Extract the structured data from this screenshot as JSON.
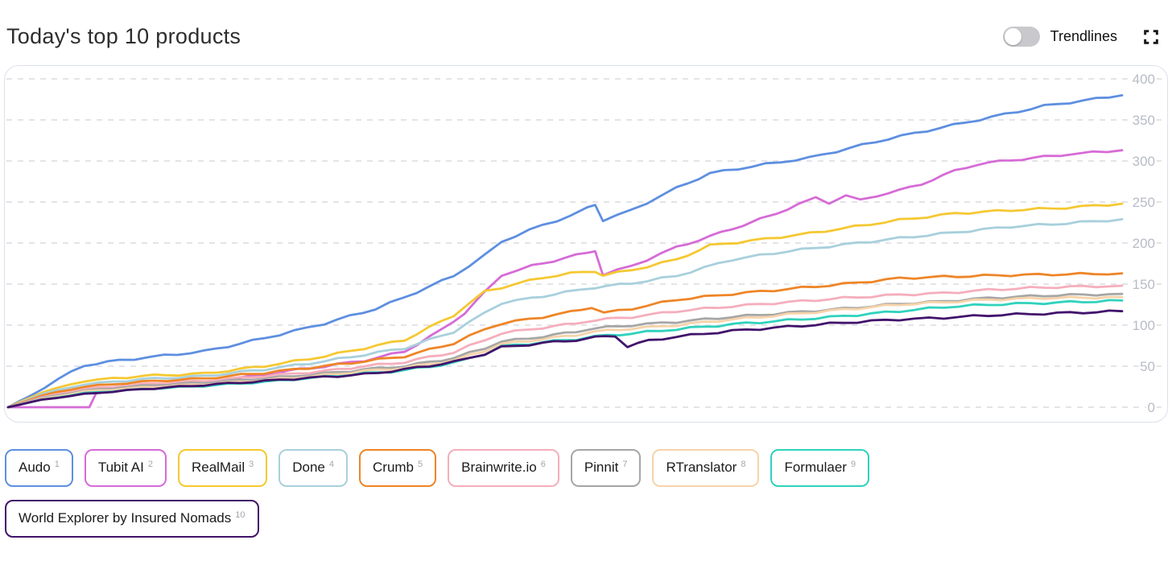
{
  "header": {
    "title": "Today's top 10 products",
    "trendlines_label": "Trendlines",
    "trendlines_state": "off"
  },
  "colors": {
    "grid": "#e4e4e8",
    "card_border": "#dce1ea",
    "tick_label": "#b8bcc5",
    "toggle_track": "#c9c9cd",
    "title_text": "#2d2d2d"
  },
  "chart_data": {
    "type": "line",
    "title": "Today's top 10 products",
    "xlabel": "",
    "ylabel": "",
    "x_range": [
      0,
      1
    ],
    "ylim": [
      0,
      400
    ],
    "yticks": [
      0,
      50,
      100,
      150,
      200,
      250,
      300,
      350,
      400
    ],
    "y_axis_side": "right",
    "grid": "dashed-horizontal",
    "legend_position": "bottom",
    "series": [
      {
        "name": "Audo",
        "rank": 1,
        "color": "#5e8fe0",
        "final_value": 380,
        "points": [
          [
            0,
            0
          ],
          [
            0.02,
            14
          ],
          [
            0.045,
            34
          ],
          [
            0.068,
            51
          ],
          [
            0.1,
            57
          ],
          [
            0.14,
            63
          ],
          [
            0.176,
            68
          ],
          [
            0.23,
            84
          ],
          [
            0.284,
            102
          ],
          [
            0.33,
            120
          ],
          [
            0.356,
            134
          ],
          [
            0.4,
            160
          ],
          [
            0.428,
            185
          ],
          [
            0.443,
            202
          ],
          [
            0.48,
            222
          ],
          [
            0.505,
            233
          ],
          [
            0.52,
            243
          ],
          [
            0.527,
            247
          ],
          [
            0.534,
            228
          ],
          [
            0.56,
            240
          ],
          [
            0.6,
            267
          ],
          [
            0.63,
            285
          ],
          [
            0.68,
            296
          ],
          [
            0.72,
            304
          ],
          [
            0.79,
            327
          ],
          [
            0.86,
            347
          ],
          [
            0.93,
            367
          ],
          [
            1,
            380
          ]
        ]
      },
      {
        "name": "Tubit AI",
        "rank": 2,
        "color": "#d66bd6",
        "final_value": 313,
        "points": [
          [
            0,
            0
          ],
          [
            0.073,
            0
          ],
          [
            0.08,
            20
          ],
          [
            0.12,
            24
          ],
          [
            0.176,
            30
          ],
          [
            0.22,
            38
          ],
          [
            0.25,
            44
          ],
          [
            0.284,
            50
          ],
          [
            0.32,
            57
          ],
          [
            0.356,
            68
          ],
          [
            0.39,
            95
          ],
          [
            0.41,
            115
          ],
          [
            0.428,
            140
          ],
          [
            0.443,
            161
          ],
          [
            0.47,
            172
          ],
          [
            0.5,
            182
          ],
          [
            0.52,
            188
          ],
          [
            0.527,
            191
          ],
          [
            0.534,
            162
          ],
          [
            0.56,
            172
          ],
          [
            0.6,
            195
          ],
          [
            0.63,
            208
          ],
          [
            0.66,
            222
          ],
          [
            0.69,
            236
          ],
          [
            0.71,
            248
          ],
          [
            0.725,
            255
          ],
          [
            0.737,
            249
          ],
          [
            0.752,
            258
          ],
          [
            0.765,
            252
          ],
          [
            0.78,
            258
          ],
          [
            0.8,
            264
          ],
          [
            0.82,
            272
          ],
          [
            0.85,
            288
          ],
          [
            0.87,
            296
          ],
          [
            0.9,
            301
          ],
          [
            0.93,
            305
          ],
          [
            0.96,
            309
          ],
          [
            1,
            313
          ]
        ]
      },
      {
        "name": "RealMail",
        "rank": 3,
        "color": "#f5c832",
        "final_value": 248,
        "points": [
          [
            0,
            0
          ],
          [
            0.03,
            18
          ],
          [
            0.068,
            32
          ],
          [
            0.12,
            38
          ],
          [
            0.176,
            41
          ],
          [
            0.23,
            50
          ],
          [
            0.284,
            62
          ],
          [
            0.32,
            72
          ],
          [
            0.356,
            82
          ],
          [
            0.4,
            112
          ],
          [
            0.428,
            141
          ],
          [
            0.443,
            146
          ],
          [
            0.48,
            158
          ],
          [
            0.505,
            163
          ],
          [
            0.527,
            166
          ],
          [
            0.534,
            161
          ],
          [
            0.56,
            167
          ],
          [
            0.6,
            180
          ],
          [
            0.63,
            197
          ],
          [
            0.68,
            205
          ],
          [
            0.72,
            212
          ],
          [
            0.76,
            220
          ],
          [
            0.8,
            228
          ],
          [
            0.85,
            236
          ],
          [
            0.9,
            240
          ],
          [
            0.95,
            243
          ],
          [
            1,
            248
          ]
        ]
      },
      {
        "name": "Done",
        "rank": 4,
        "color": "#a8d0dc",
        "final_value": 229,
        "points": [
          [
            0,
            0
          ],
          [
            0.03,
            16
          ],
          [
            0.068,
            28
          ],
          [
            0.12,
            34
          ],
          [
            0.176,
            38
          ],
          [
            0.23,
            46
          ],
          [
            0.284,
            56
          ],
          [
            0.32,
            64
          ],
          [
            0.356,
            72
          ],
          [
            0.4,
            92
          ],
          [
            0.428,
            115
          ],
          [
            0.443,
            127
          ],
          [
            0.47,
            133
          ],
          [
            0.5,
            140
          ],
          [
            0.527,
            146
          ],
          [
            0.56,
            151
          ],
          [
            0.6,
            160
          ],
          [
            0.65,
            180
          ],
          [
            0.7,
            190
          ],
          [
            0.75,
            198
          ],
          [
            0.8,
            206
          ],
          [
            0.85,
            213
          ],
          [
            0.9,
            220
          ],
          [
            0.95,
            224
          ],
          [
            1,
            229
          ]
        ]
      },
      {
        "name": "Crumb",
        "rank": 5,
        "color": "#ee8527",
        "final_value": 163,
        "points": [
          [
            0,
            0
          ],
          [
            0.03,
            14
          ],
          [
            0.068,
            25
          ],
          [
            0.12,
            31
          ],
          [
            0.176,
            35
          ],
          [
            0.23,
            42
          ],
          [
            0.284,
            50
          ],
          [
            0.32,
            56
          ],
          [
            0.356,
            62
          ],
          [
            0.4,
            78
          ],
          [
            0.428,
            95
          ],
          [
            0.443,
            102
          ],
          [
            0.48,
            110
          ],
          [
            0.505,
            116
          ],
          [
            0.524,
            122
          ],
          [
            0.535,
            115
          ],
          [
            0.56,
            120
          ],
          [
            0.6,
            131
          ],
          [
            0.65,
            138
          ],
          [
            0.7,
            144
          ],
          [
            0.75,
            150
          ],
          [
            0.8,
            157
          ],
          [
            0.84,
            159
          ],
          [
            0.9,
            161
          ],
          [
            1,
            163
          ]
        ]
      },
      {
        "name": "Brainwrite.io",
        "rank": 6,
        "color": "#f5aebc",
        "final_value": 148,
        "points": [
          [
            0,
            0
          ],
          [
            0.03,
            12
          ],
          [
            0.068,
            22
          ],
          [
            0.12,
            28
          ],
          [
            0.176,
            32
          ],
          [
            0.23,
            38
          ],
          [
            0.284,
            44
          ],
          [
            0.32,
            50
          ],
          [
            0.356,
            55
          ],
          [
            0.4,
            67
          ],
          [
            0.428,
            82
          ],
          [
            0.443,
            90
          ],
          [
            0.48,
            97
          ],
          [
            0.51,
            102
          ],
          [
            0.527,
            106
          ],
          [
            0.56,
            110
          ],
          [
            0.6,
            117
          ],
          [
            0.65,
            123
          ],
          [
            0.7,
            128
          ],
          [
            0.75,
            133
          ],
          [
            0.8,
            137
          ],
          [
            0.84,
            139
          ],
          [
            0.88,
            143
          ],
          [
            0.93,
            146
          ],
          [
            1,
            148
          ]
        ]
      },
      {
        "name": "Pinnit",
        "rank": 7,
        "color": "#a6a6a6",
        "final_value": 138,
        "points": [
          [
            0,
            0
          ],
          [
            0.03,
            11
          ],
          [
            0.068,
            20
          ],
          [
            0.12,
            26
          ],
          [
            0.176,
            30
          ],
          [
            0.23,
            35
          ],
          [
            0.284,
            41
          ],
          [
            0.32,
            46
          ],
          [
            0.356,
            50
          ],
          [
            0.4,
            60
          ],
          [
            0.428,
            72
          ],
          [
            0.443,
            80
          ],
          [
            0.48,
            86
          ],
          [
            0.51,
            92
          ],
          [
            0.527,
            96
          ],
          [
            0.56,
            100
          ],
          [
            0.6,
            104
          ],
          [
            0.65,
            110
          ],
          [
            0.7,
            115
          ],
          [
            0.75,
            120
          ],
          [
            0.8,
            126
          ],
          [
            0.84,
            129
          ],
          [
            0.88,
            133
          ],
          [
            0.93,
            136
          ],
          [
            1,
            138
          ]
        ]
      },
      {
        "name": "RTranslator",
        "rank": 8,
        "color": "#f6d3aa",
        "final_value": 134,
        "points": [
          [
            0,
            0
          ],
          [
            0.03,
            10
          ],
          [
            0.068,
            19
          ],
          [
            0.12,
            24
          ],
          [
            0.176,
            28
          ],
          [
            0.23,
            33
          ],
          [
            0.284,
            39
          ],
          [
            0.32,
            44
          ],
          [
            0.356,
            48
          ],
          [
            0.4,
            57
          ],
          [
            0.428,
            69
          ],
          [
            0.443,
            77
          ],
          [
            0.48,
            83
          ],
          [
            0.51,
            88
          ],
          [
            0.527,
            92
          ],
          [
            0.56,
            96
          ],
          [
            0.6,
            100
          ],
          [
            0.65,
            107
          ],
          [
            0.7,
            113
          ],
          [
            0.75,
            119
          ],
          [
            0.8,
            125
          ],
          [
            0.84,
            128
          ],
          [
            0.88,
            131
          ],
          [
            0.93,
            133
          ],
          [
            1,
            134
          ]
        ]
      },
      {
        "name": "Formulaer",
        "rank": 9,
        "color": "#30d2bc",
        "final_value": 130,
        "points": [
          [
            0,
            0
          ],
          [
            0.03,
            9
          ],
          [
            0.068,
            17
          ],
          [
            0.12,
            22
          ],
          [
            0.176,
            26
          ],
          [
            0.23,
            31
          ],
          [
            0.284,
            37
          ],
          [
            0.32,
            41
          ],
          [
            0.356,
            45
          ],
          [
            0.4,
            54
          ],
          [
            0.428,
            65
          ],
          [
            0.443,
            74
          ],
          [
            0.48,
            79
          ],
          [
            0.51,
            83
          ],
          [
            0.527,
            86
          ],
          [
            0.56,
            90
          ],
          [
            0.6,
            95
          ],
          [
            0.65,
            101
          ],
          [
            0.7,
            106
          ],
          [
            0.75,
            111
          ],
          [
            0.8,
            117
          ],
          [
            0.84,
            122
          ],
          [
            0.88,
            125
          ],
          [
            0.93,
            127
          ],
          [
            1,
            130
          ]
        ]
      },
      {
        "name": "World Explorer by Insured Nomads",
        "rank": 10,
        "color": "#41136b",
        "final_value": 117,
        "points": [
          [
            0,
            0
          ],
          [
            0.03,
            9
          ],
          [
            0.068,
            16
          ],
          [
            0.12,
            22
          ],
          [
            0.176,
            27
          ],
          [
            0.23,
            32
          ],
          [
            0.284,
            37
          ],
          [
            0.32,
            40
          ],
          [
            0.356,
            46
          ],
          [
            0.4,
            55
          ],
          [
            0.428,
            65
          ],
          [
            0.443,
            73
          ],
          [
            0.48,
            78
          ],
          [
            0.51,
            82
          ],
          [
            0.527,
            85
          ],
          [
            0.545,
            87
          ],
          [
            0.556,
            74
          ],
          [
            0.575,
            81
          ],
          [
            0.6,
            86
          ],
          [
            0.65,
            93
          ],
          [
            0.7,
            98
          ],
          [
            0.75,
            103
          ],
          [
            0.8,
            107
          ],
          [
            0.84,
            109
          ],
          [
            0.88,
            112
          ],
          [
            0.93,
            114
          ],
          [
            1,
            117
          ]
        ]
      }
    ]
  }
}
